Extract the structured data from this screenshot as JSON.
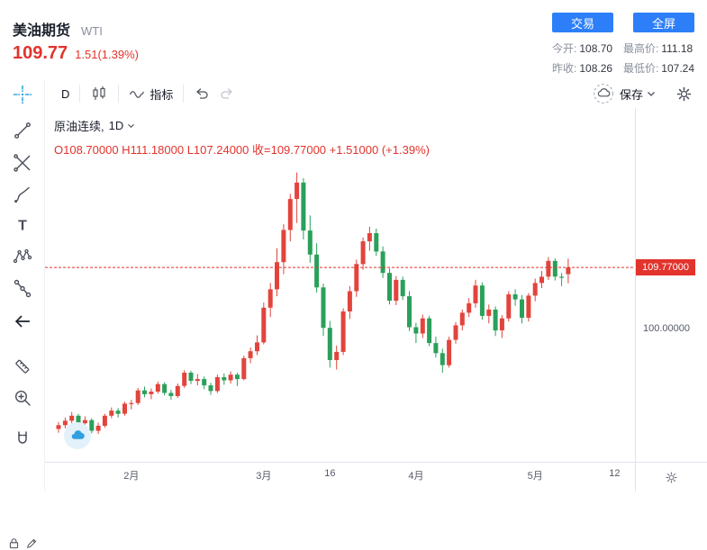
{
  "header": {
    "title": "美油期货",
    "symbol": "WTI",
    "price": "109.77",
    "change": "1.51(1.39%)",
    "trade_button": "交易",
    "fullscreen_button": "全屏",
    "stats": [
      {
        "label": "今开:",
        "value": "108.70"
      },
      {
        "label": "最高价:",
        "value": "111.18"
      },
      {
        "label": "昨收:",
        "value": "108.26"
      },
      {
        "label": "最低价:",
        "value": "107.24"
      }
    ]
  },
  "toolbar": {
    "interval": "D",
    "indicators_label": "指标",
    "save_label": "保存"
  },
  "sidebar_tools": [
    "crosshair",
    "trend-line",
    "gann-fibonacci",
    "brush",
    "text",
    "xabcd-pattern",
    "prediction-measurement",
    "collapse-arrow",
    "ruler",
    "zoom-in",
    "magnet",
    "lock",
    "edit"
  ],
  "legend": {
    "series_title": "原油连续,",
    "interval": "1D",
    "ohlc": "O108.70000  H111.18000  L107.24000  收=109.77000  +1.51000 (+1.39%)"
  },
  "chart_data": {
    "type": "candlestick",
    "symbol": "原油连续",
    "interval": "1D",
    "last_price": 109.77,
    "price_label": "109.77000",
    "open": 108.7,
    "high": 111.18,
    "low": 107.24,
    "close": 109.77,
    "prev_close": 108.26,
    "change": 1.51,
    "change_pct": 1.39,
    "price_range": [
      79.0,
      135.0
    ],
    "grid": false,
    "colors": {
      "up": "#e2443c",
      "down": "#2aa05a",
      "price_line": "#e2332c"
    },
    "axis_labels": [
      {
        "price": 100,
        "text": "100.00000"
      }
    ],
    "time_labels": [
      {
        "text": "2月",
        "i": 11
      },
      {
        "text": "3月",
        "i": 31
      },
      {
        "text": "16",
        "i": 41
      },
      {
        "text": "4月",
        "i": 54
      },
      {
        "text": "5月",
        "i": 72
      },
      {
        "text": "12",
        "i": 84
      }
    ],
    "candles": [
      [
        84.2,
        85.3,
        83.6,
        84.8
      ],
      [
        84.8,
        86.0,
        84.3,
        85.5
      ],
      [
        85.5,
        86.9,
        85.1,
        86.3
      ],
      [
        86.3,
        86.6,
        84.6,
        85.1
      ],
      [
        85.1,
        86.2,
        84.7,
        85.6
      ],
      [
        85.6,
        85.9,
        83.5,
        83.9
      ],
      [
        83.9,
        85.2,
        83.4,
        84.7
      ],
      [
        84.7,
        86.6,
        84.4,
        86.3
      ],
      [
        86.3,
        87.6,
        85.9,
        87.1
      ],
      [
        87.1,
        87.5,
        86.0,
        86.6
      ],
      [
        86.6,
        88.5,
        86.3,
        88.2
      ],
      [
        88.2,
        88.8,
        87.3,
        88.3
      ],
      [
        88.3,
        90.7,
        88.0,
        90.3
      ],
      [
        90.3,
        90.9,
        89.2,
        89.7
      ],
      [
        89.7,
        90.6,
        88.9,
        90.1
      ],
      [
        90.1,
        91.7,
        89.8,
        91.3
      ],
      [
        91.3,
        91.6,
        89.5,
        89.9
      ],
      [
        89.9,
        90.4,
        88.8,
        89.4
      ],
      [
        89.4,
        91.4,
        89.1,
        91.0
      ],
      [
        91.0,
        93.5,
        90.7,
        93.1
      ],
      [
        93.1,
        93.4,
        91.3,
        91.8
      ],
      [
        91.8,
        92.9,
        91.1,
        92.1
      ],
      [
        92.1,
        92.5,
        90.5,
        91.1
      ],
      [
        91.1,
        91.5,
        89.6,
        90.2
      ],
      [
        90.2,
        92.8,
        89.9,
        92.4
      ],
      [
        92.4,
        93.0,
        91.2,
        91.9
      ],
      [
        91.9,
        93.3,
        91.4,
        92.8
      ],
      [
        92.8,
        93.1,
        91.0,
        92.1
      ],
      [
        92.1,
        95.8,
        91.9,
        95.4
      ],
      [
        95.4,
        97.1,
        94.6,
        96.5
      ],
      [
        96.5,
        99.0,
        95.9,
        97.9
      ],
      [
        97.9,
        104.2,
        97.6,
        103.4
      ],
      [
        103.4,
        107.3,
        101.9,
        106.3
      ],
      [
        106.3,
        112.8,
        105.2,
        110.6
      ],
      [
        110.6,
        116.6,
        108.7,
        115.7
      ],
      [
        115.7,
        121.4,
        113.9,
        120.6
      ],
      [
        120.6,
        124.8,
        116.8,
        123.2
      ],
      [
        123.2,
        123.9,
        114.2,
        115.6
      ],
      [
        115.6,
        118.0,
        110.5,
        111.8
      ],
      [
        111.8,
        113.6,
        105.8,
        106.6
      ],
      [
        106.6,
        107.2,
        98.9,
        100.2
      ],
      [
        100.2,
        101.3,
        93.9,
        95.1
      ],
      [
        95.1,
        97.4,
        93.6,
        96.4
      ],
      [
        96.4,
        103.3,
        95.9,
        102.8
      ],
      [
        102.8,
        106.8,
        101.6,
        106.0
      ],
      [
        106.0,
        111.0,
        105.1,
        110.3
      ],
      [
        110.3,
        114.5,
        109.4,
        113.9
      ],
      [
        113.9,
        116.2,
        112.4,
        115.2
      ],
      [
        115.2,
        115.9,
        111.6,
        112.3
      ],
      [
        112.3,
        113.1,
        108.1,
        108.9
      ],
      [
        108.9,
        109.6,
        103.9,
        104.5
      ],
      [
        104.5,
        108.4,
        103.8,
        107.8
      ],
      [
        107.8,
        108.3,
        104.6,
        105.2
      ],
      [
        105.2,
        106.0,
        99.7,
        100.3
      ],
      [
        100.3,
        101.0,
        97.8,
        99.3
      ],
      [
        99.3,
        102.3,
        98.6,
        101.7
      ],
      [
        101.7,
        102.1,
        97.3,
        97.8
      ],
      [
        97.8,
        98.8,
        95.5,
        96.2
      ],
      [
        96.2,
        96.9,
        93.1,
        94.3
      ],
      [
        94.3,
        98.8,
        93.9,
        98.3
      ],
      [
        98.3,
        101.1,
        97.7,
        100.6
      ],
      [
        100.6,
        103.1,
        99.8,
        102.6
      ],
      [
        102.6,
        104.9,
        101.9,
        104.1
      ],
      [
        104.1,
        107.8,
        103.4,
        106.9
      ],
      [
        106.9,
        107.4,
        101.5,
        102.1
      ],
      [
        102.1,
        103.9,
        100.9,
        103.1
      ],
      [
        103.1,
        103.6,
        98.9,
        99.8
      ],
      [
        99.8,
        102.2,
        98.6,
        101.7
      ],
      [
        101.7,
        106.0,
        101.2,
        105.5
      ],
      [
        105.5,
        106.3,
        103.7,
        104.7
      ],
      [
        104.7,
        105.4,
        100.9,
        101.8
      ],
      [
        101.8,
        105.7,
        101.2,
        105.3
      ],
      [
        105.3,
        108.0,
        104.4,
        107.3
      ],
      [
        107.3,
        109.2,
        106.5,
        108.3
      ],
      [
        108.3,
        111.4,
        107.8,
        110.8
      ],
      [
        110.8,
        111.2,
        107.7,
        108.3
      ],
      [
        108.3,
        108.9,
        106.8,
        108.26
      ],
      [
        108.7,
        111.18,
        107.24,
        109.77
      ]
    ]
  }
}
